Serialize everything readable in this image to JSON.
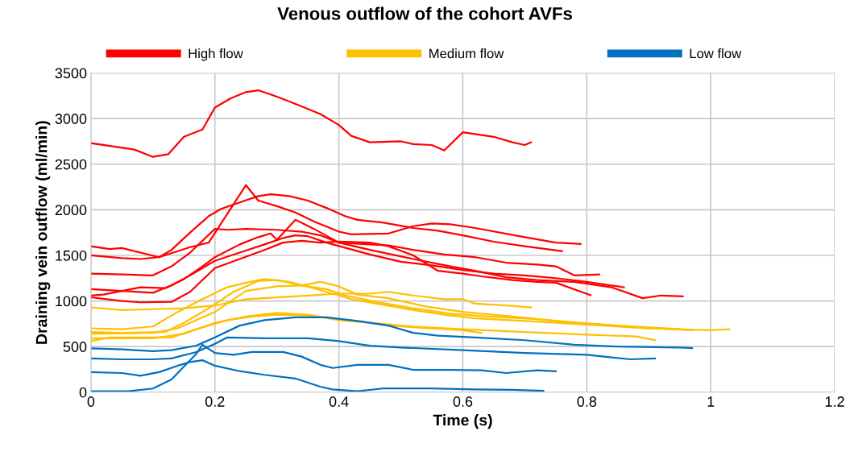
{
  "chart_data": {
    "type": "line",
    "title": "Venous outflow of the cohort AVFs",
    "xlabel": "Time (s)",
    "ylabel": "Draining vein outflow (ml/min)",
    "xlim": [
      0,
      1.2
    ],
    "xticks": [
      0,
      0.2,
      0.4,
      0.6,
      0.8,
      1,
      1.2
    ],
    "ylim": [
      0,
      3500
    ],
    "yticks": [
      0,
      500,
      1000,
      1500,
      2000,
      2500,
      3000,
      3500
    ],
    "grid": true,
    "legend": "top",
    "marker": "none",
    "line_style": "solid",
    "series": [
      {
        "name": "High flow",
        "color": "#ff0000",
        "x": [
          0,
          0.07,
          0.1,
          0.125,
          0.15,
          0.18,
          0.2,
          0.225,
          0.25,
          0.27,
          0.3,
          0.33,
          0.37,
          0.4,
          0.42,
          0.45,
          0.5,
          0.52,
          0.55,
          0.57,
          0.6,
          0.65,
          0.68,
          0.7,
          0.71
        ],
        "values": [
          2730,
          2660,
          2580,
          2610,
          2800,
          2880,
          3120,
          3220,
          3290,
          3310,
          3240,
          3160,
          3050,
          2930,
          2810,
          2740,
          2750,
          2720,
          2710,
          2650,
          2850,
          2800,
          2740,
          2710,
          2740
        ]
      },
      {
        "color": "#ff0000",
        "x": [
          0,
          0.05,
          0.08,
          0.11,
          0.13,
          0.16,
          0.19,
          0.21,
          0.24,
          0.27,
          0.29,
          0.32,
          0.35,
          0.38,
          0.41,
          0.43,
          0.47,
          0.52,
          0.56,
          0.6,
          0.65,
          0.7,
          0.76
        ],
        "values": [
          1500,
          1470,
          1460,
          1480,
          1560,
          1750,
          1930,
          2010,
          2080,
          2150,
          2170,
          2150,
          2100,
          2020,
          1930,
          1890,
          1860,
          1800,
          1770,
          1720,
          1650,
          1600,
          1547
        ]
      },
      {
        "color": "#ff0000",
        "x": [
          0,
          0.03,
          0.05,
          0.11,
          0.16,
          0.19,
          0.25,
          0.27,
          0.3,
          0.33,
          0.36,
          0.4,
          0.42,
          0.48,
          0.52,
          0.55,
          0.58,
          0.62,
          0.7,
          0.75,
          0.79
        ],
        "values": [
          1600,
          1570,
          1580,
          1480,
          1590,
          1640,
          2270,
          2100,
          2040,
          1970,
          1870,
          1760,
          1730,
          1740,
          1820,
          1850,
          1840,
          1800,
          1700,
          1640,
          1625
        ]
      },
      {
        "color": "#ff0000",
        "x": [
          0,
          0.05,
          0.1,
          0.13,
          0.16,
          0.2,
          0.22,
          0.25,
          0.3,
          0.34,
          0.37,
          0.4,
          0.45,
          0.48,
          0.52,
          0.57,
          0.62,
          0.67,
          0.72,
          0.75,
          0.78,
          0.82
        ],
        "values": [
          1300,
          1290,
          1280,
          1380,
          1530,
          1790,
          1780,
          1790,
          1780,
          1760,
          1720,
          1640,
          1620,
          1610,
          1560,
          1510,
          1480,
          1420,
          1400,
          1380,
          1280,
          1290
        ]
      },
      {
        "color": "#ff0000",
        "x": [
          0,
          0.05,
          0.1,
          0.13,
          0.16,
          0.2,
          0.24,
          0.28,
          0.31,
          0.33,
          0.35,
          0.38,
          0.45,
          0.5,
          0.55,
          0.6,
          0.65,
          0.7,
          0.75,
          0.8,
          0.86
        ],
        "values": [
          1130,
          1110,
          1090,
          1170,
          1280,
          1440,
          1530,
          1620,
          1690,
          1720,
          1710,
          1640,
          1510,
          1430,
          1390,
          1340,
          1300,
          1280,
          1250,
          1210,
          1150
        ]
      },
      {
        "color": "#ff0000",
        "x": [
          0,
          0.02,
          0.08,
          0.12,
          0.15,
          0.18,
          0.2,
          0.24,
          0.27,
          0.29,
          0.3,
          0.33,
          0.36,
          0.4,
          0.45,
          0.52,
          0.58,
          0.62,
          0.67,
          0.72,
          0.78,
          0.84,
          0.89,
          0.92,
          0.955
        ],
        "values": [
          1060,
          1070,
          1150,
          1140,
          1240,
          1380,
          1480,
          1620,
          1700,
          1740,
          1670,
          1890,
          1790,
          1640,
          1560,
          1460,
          1380,
          1330,
          1260,
          1230,
          1210,
          1150,
          1030,
          1060,
          1050
        ]
      },
      {
        "color": "#ff0000",
        "x": [
          0,
          0.05,
          0.08,
          0.13,
          0.16,
          0.2,
          0.24,
          0.28,
          0.31,
          0.34,
          0.37,
          0.4,
          0.45,
          0.48,
          0.52,
          0.56,
          0.6,
          0.63,
          0.68,
          0.72,
          0.75,
          0.806
        ],
        "values": [
          1040,
          1000,
          985,
          990,
          1100,
          1360,
          1460,
          1560,
          1640,
          1660,
          1640,
          1650,
          1640,
          1600,
          1500,
          1330,
          1300,
          1270,
          1230,
          1210,
          1200,
          1063
        ]
      },
      {
        "name": "Medium flow",
        "color": "#ffc000",
        "x": [
          0,
          0.05,
          0.1,
          0.15,
          0.2,
          0.25,
          0.3,
          0.35,
          0.4,
          0.45,
          0.48,
          0.52,
          0.57,
          0.6,
          0.62,
          0.67,
          0.71
        ],
        "values": [
          930,
          900,
          910,
          920,
          950,
          1020,
          1040,
          1060,
          1080,
          1080,
          1100,
          1060,
          1020,
          1020,
          970,
          950,
          930
        ]
      },
      {
        "color": "#ffc000",
        "x": [
          0,
          0.05,
          0.1,
          0.14,
          0.18,
          0.22,
          0.25,
          0.28,
          0.32,
          0.37,
          0.42,
          0.47,
          0.52,
          0.57,
          0.62,
          0.7,
          0.8,
          0.9,
          1.0,
          1.03
        ],
        "values": [
          700,
          690,
          720,
          880,
          1020,
          1150,
          1200,
          1240,
          1210,
          1120,
          1020,
          960,
          900,
          850,
          810,
          780,
          740,
          700,
          680,
          690
        ]
      },
      {
        "color": "#ffc000",
        "x": [
          0,
          0.05,
          0.12,
          0.15,
          0.19,
          0.23,
          0.27,
          0.3,
          0.34,
          0.38,
          0.41,
          0.46,
          0.52,
          0.58,
          0.64,
          0.72,
          0.8,
          0.88,
          0.97
        ],
        "values": [
          660,
          650,
          660,
          760,
          920,
          1100,
          1220,
          1230,
          1170,
          1130,
          1060,
          990,
          920,
          860,
          830,
          800,
          750,
          710,
          680
        ]
      },
      {
        "color": "#ffc000",
        "x": [
          0,
          0.1,
          0.14,
          0.2,
          0.25,
          0.3,
          0.34,
          0.37,
          0.4,
          0.43,
          0.48,
          0.54,
          0.6,
          0.68,
          0.75,
          0.85,
          0.95
        ],
        "values": [
          640,
          650,
          700,
          880,
          1110,
          1160,
          1170,
          1210,
          1160,
          1070,
          1030,
          940,
          880,
          830,
          780,
          730,
          690
        ]
      },
      {
        "color": "#ffc000",
        "x": [
          0,
          0.05,
          0.1,
          0.15,
          0.2,
          0.25,
          0.3,
          0.35,
          0.4,
          0.45,
          0.5,
          0.55,
          0.6,
          0.63
        ],
        "values": [
          590,
          590,
          590,
          640,
          760,
          830,
          870,
          850,
          790,
          760,
          720,
          700,
          680,
          650
        ]
      },
      {
        "color": "#ffc000",
        "x": [
          0,
          0.03,
          0.08,
          0.13,
          0.17,
          0.22,
          0.26,
          0.3,
          0.35,
          0.4,
          0.45,
          0.52,
          0.6,
          0.7,
          0.8,
          0.88,
          0.91
        ],
        "values": [
          560,
          600,
          600,
          600,
          690,
          790,
          830,
          850,
          840,
          800,
          760,
          720,
          690,
          660,
          630,
          610,
          570
        ]
      },
      {
        "name": "Low flow",
        "color": "#0070c0",
        "x": [
          0,
          0.05,
          0.1,
          0.13,
          0.17,
          0.2,
          0.24,
          0.28,
          0.33,
          0.38,
          0.43,
          0.48,
          0.52,
          0.56,
          0.62,
          0.7,
          0.78,
          0.85,
          0.95,
          0.97
        ],
        "values": [
          480,
          470,
          450,
          460,
          510,
          600,
          730,
          790,
          820,
          820,
          780,
          730,
          650,
          620,
          600,
          570,
          520,
          500,
          490,
          483
        ]
      },
      {
        "color": "#0070c0",
        "x": [
          0,
          0.05,
          0.1,
          0.13,
          0.17,
          0.2,
          0.22,
          0.28,
          0.35,
          0.4,
          0.45,
          0.5,
          0.6,
          0.7,
          0.8,
          0.87,
          0.91
        ],
        "values": [
          370,
          360,
          360,
          370,
          440,
          530,
          600,
          590,
          590,
          560,
          510,
          490,
          460,
          430,
          410,
          360,
          370
        ]
      },
      {
        "color": "#0070c0",
        "x": [
          0,
          0.05,
          0.08,
          0.11,
          0.14,
          0.16,
          0.18,
          0.2,
          0.24,
          0.28,
          0.33,
          0.37,
          0.39,
          0.43,
          0.47,
          0.55,
          0.62,
          0.68,
          0.73
        ],
        "values": [
          220,
          210,
          180,
          220,
          290,
          330,
          350,
          290,
          230,
          190,
          150,
          60,
          30,
          10,
          40,
          40,
          30,
          25,
          15
        ]
      },
      {
        "color": "#0070c0",
        "x": [
          0,
          0.06,
          0.1,
          0.13,
          0.15,
          0.17,
          0.18,
          0.2,
          0.23,
          0.26,
          0.31,
          0.34,
          0.37,
          0.39,
          0.43,
          0.48,
          0.52,
          0.58,
          0.63,
          0.67,
          0.72,
          0.75
        ],
        "values": [
          10,
          10,
          40,
          140,
          280,
          420,
          520,
          430,
          410,
          440,
          440,
          390,
          300,
          265,
          300,
          300,
          245,
          245,
          240,
          210,
          240,
          230
        ]
      }
    ]
  }
}
